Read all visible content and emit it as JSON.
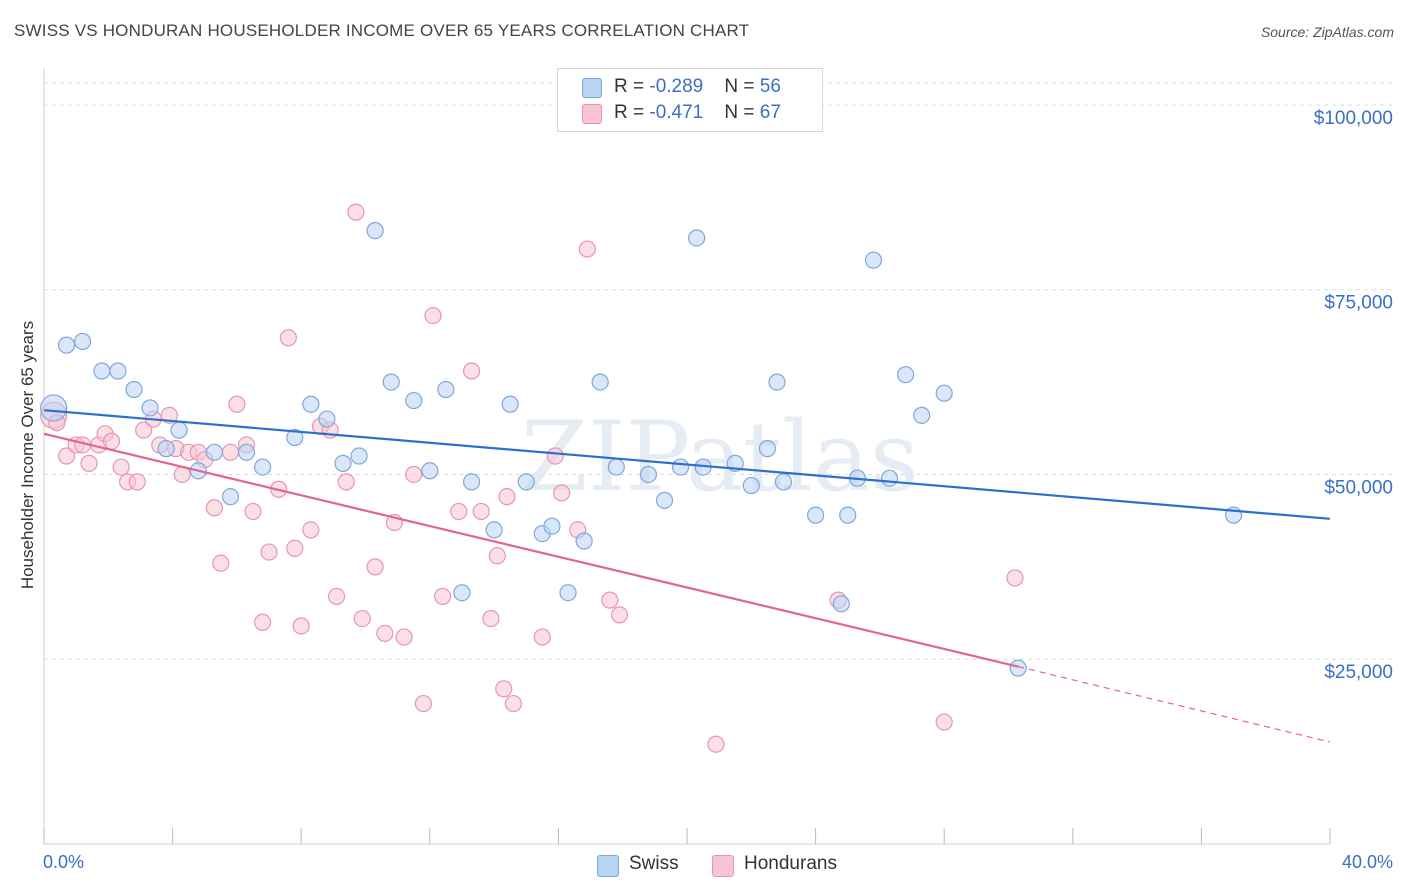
{
  "title": "SWISS VS HONDURAN HOUSEHOLDER INCOME OVER 65 YEARS CORRELATION CHART",
  "source": "Source: ZipAtlas.com",
  "watermark": "ZIPatlas",
  "legend": {
    "swiss": {
      "r_label": "R = ",
      "r_value": "-0.289",
      "n_label": "N = ",
      "n_value": "56"
    },
    "hondurans": {
      "r_label": "R = ",
      "r_value": "-0.471",
      "n_label": "N = ",
      "n_value": "67"
    }
  },
  "bottom_legend": {
    "swiss": "Swiss",
    "hondurans": "Hondurans"
  },
  "colors": {
    "swiss_fill": "#b9d3f3",
    "swiss_stroke": "#7ea7dd",
    "swiss_line": "#2b6fd0",
    "hondurans_fill": "#f7c4d3",
    "hondurans_stroke": "#e995b0",
    "hondurans_line": "#e06590",
    "axis_label": "#3a6fc4"
  },
  "chart_data": {
    "type": "scatter",
    "title": "SWISS VS HONDURAN HOUSEHOLDER INCOME OVER 65 YEARS CORRELATION CHART",
    "xlabel": "",
    "ylabel": "Householder Income Over 65 years",
    "xlim": [
      0,
      40
    ],
    "ylim": [
      0,
      105000
    ],
    "x_tick_labels": [
      "0.0%",
      "40.0%"
    ],
    "y_ticks": [
      25000,
      50000,
      75000,
      100000
    ],
    "y_tick_labels": [
      "$25,000",
      "$50,000",
      "$75,000",
      "$100,000"
    ],
    "grid": true,
    "series": [
      {
        "name": "Swiss",
        "trend": {
          "x": [
            0,
            40
          ],
          "y": [
            58700,
            44000
          ],
          "dashed_from": null
        },
        "points": [
          [
            0.3,
            59000
          ],
          [
            0.7,
            67500
          ],
          [
            1.2,
            68000
          ],
          [
            1.8,
            64000
          ],
          [
            2.3,
            64000
          ],
          [
            2.8,
            61500
          ],
          [
            3.3,
            59000
          ],
          [
            3.8,
            53500
          ],
          [
            4.2,
            56000
          ],
          [
            4.8,
            50500
          ],
          [
            5.3,
            53000
          ],
          [
            5.8,
            47000
          ],
          [
            6.3,
            53000
          ],
          [
            6.8,
            51000
          ],
          [
            7.8,
            55000
          ],
          [
            8.3,
            59500
          ],
          [
            8.8,
            57500
          ],
          [
            9.3,
            51500
          ],
          [
            9.8,
            52500
          ],
          [
            10.3,
            83000
          ],
          [
            10.8,
            62500
          ],
          [
            11.5,
            60000
          ],
          [
            12.0,
            50500
          ],
          [
            12.5,
            61500
          ],
          [
            13.0,
            34000
          ],
          [
            13.3,
            49000
          ],
          [
            14.0,
            42500
          ],
          [
            14.5,
            59500
          ],
          [
            15.0,
            49000
          ],
          [
            15.5,
            42000
          ],
          [
            15.8,
            43000
          ],
          [
            16.3,
            34000
          ],
          [
            16.8,
            41000
          ],
          [
            17.3,
            62500
          ],
          [
            17.8,
            51000
          ],
          [
            18.8,
            50000
          ],
          [
            19.3,
            46500
          ],
          [
            19.8,
            51000
          ],
          [
            20.5,
            51000
          ],
          [
            20.3,
            82000
          ],
          [
            21.5,
            51500
          ],
          [
            22.0,
            48500
          ],
          [
            22.5,
            53500
          ],
          [
            22.8,
            62500
          ],
          [
            23.0,
            49000
          ],
          [
            24.0,
            44500
          ],
          [
            24.8,
            32500
          ],
          [
            25.0,
            44500
          ],
          [
            25.3,
            49500
          ],
          [
            26.3,
            49500
          ],
          [
            25.8,
            79000
          ],
          [
            26.8,
            63500
          ],
          [
            27.3,
            58000
          ],
          [
            28.0,
            61000
          ],
          [
            30.3,
            23800
          ],
          [
            37.0,
            44500
          ]
        ]
      },
      {
        "name": "Hondurans",
        "trend": {
          "x": [
            0,
            30.3,
            40
          ],
          "y": [
            55500,
            24000,
            13800
          ],
          "dashed_from": 30.3
        },
        "points": [
          [
            0.3,
            58000
          ],
          [
            0.4,
            57000
          ],
          [
            0.7,
            52500
          ],
          [
            1.0,
            54000
          ],
          [
            1.2,
            54000
          ],
          [
            1.4,
            51500
          ],
          [
            1.7,
            54000
          ],
          [
            1.9,
            55500
          ],
          [
            2.1,
            54500
          ],
          [
            2.4,
            51000
          ],
          [
            2.6,
            49000
          ],
          [
            2.9,
            49000
          ],
          [
            3.1,
            56000
          ],
          [
            3.4,
            57500
          ],
          [
            3.6,
            54000
          ],
          [
            3.9,
            58000
          ],
          [
            4.1,
            53500
          ],
          [
            4.3,
            50000
          ],
          [
            4.5,
            53000
          ],
          [
            4.8,
            53000
          ],
          [
            5.0,
            52000
          ],
          [
            5.3,
            45500
          ],
          [
            5.5,
            38000
          ],
          [
            5.8,
            53000
          ],
          [
            6.0,
            59500
          ],
          [
            6.3,
            54000
          ],
          [
            6.5,
            45000
          ],
          [
            6.8,
            30000
          ],
          [
            7.0,
            39500
          ],
          [
            7.3,
            48000
          ],
          [
            7.6,
            68500
          ],
          [
            7.8,
            40000
          ],
          [
            8.0,
            29500
          ],
          [
            8.3,
            42500
          ],
          [
            8.6,
            56500
          ],
          [
            8.9,
            56000
          ],
          [
            9.1,
            33500
          ],
          [
            9.4,
            49000
          ],
          [
            9.7,
            85500
          ],
          [
            9.9,
            30500
          ],
          [
            10.3,
            37500
          ],
          [
            10.6,
            28500
          ],
          [
            10.9,
            43500
          ],
          [
            11.2,
            28000
          ],
          [
            11.5,
            50000
          ],
          [
            11.8,
            19000
          ],
          [
            12.1,
            71500
          ],
          [
            12.4,
            33500
          ],
          [
            12.9,
            45000
          ],
          [
            13.3,
            64000
          ],
          [
            13.6,
            45000
          ],
          [
            13.9,
            30500
          ],
          [
            14.1,
            39000
          ],
          [
            14.3,
            21000
          ],
          [
            14.4,
            47000
          ],
          [
            14.6,
            19000
          ],
          [
            15.5,
            28000
          ],
          [
            15.9,
            52500
          ],
          [
            16.1,
            47500
          ],
          [
            16.6,
            42500
          ],
          [
            16.9,
            80500
          ],
          [
            17.6,
            33000
          ],
          [
            17.9,
            31000
          ],
          [
            20.9,
            13500
          ],
          [
            24.7,
            33000
          ],
          [
            28.0,
            16500
          ],
          [
            30.2,
            36000
          ]
        ]
      }
    ]
  }
}
